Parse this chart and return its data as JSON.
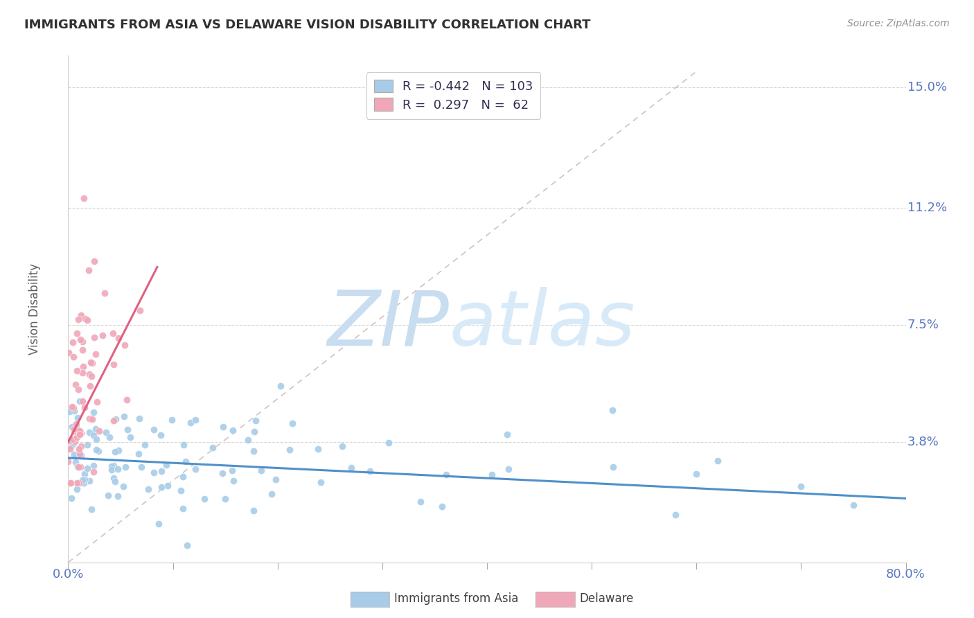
{
  "title": "IMMIGRANTS FROM ASIA VS DELAWARE VISION DISABILITY CORRELATION CHART",
  "source": "Source: ZipAtlas.com",
  "xlabel_blue": "Immigrants from Asia",
  "xlabel_pink": "Delaware",
  "ylabel": "Vision Disability",
  "xlim": [
    0.0,
    0.8
  ],
  "ylim": [
    0.0,
    0.16
  ],
  "yticks": [
    0.038,
    0.075,
    0.112,
    0.15
  ],
  "ytick_labels": [
    "3.8%",
    "7.5%",
    "11.2%",
    "15.0%"
  ],
  "xtick_left": "0.0%",
  "xtick_right": "80.0%",
  "blue_R": -0.442,
  "blue_N": 103,
  "pink_R": 0.297,
  "pink_N": 62,
  "blue_color": "#a8cce8",
  "blue_line_color": "#5090c8",
  "pink_color": "#f0a8b8",
  "pink_line_color": "#e06080",
  "diagonal_color": "#c8b8b8",
  "watermark_ZIP_color": "#c8ddf0",
  "watermark_atlas_color": "#d8eaf8",
  "title_color": "#303030",
  "axis_label_color": "#5878c0",
  "ytick_color": "#5878c0",
  "xtick_color": "#5878c0",
  "background_color": "#ffffff",
  "legend_text_dark": "#303050",
  "legend_N_color": "#4878c0",
  "grid_color": "#cccccc",
  "seed_blue": 42,
  "seed_pink": 7
}
